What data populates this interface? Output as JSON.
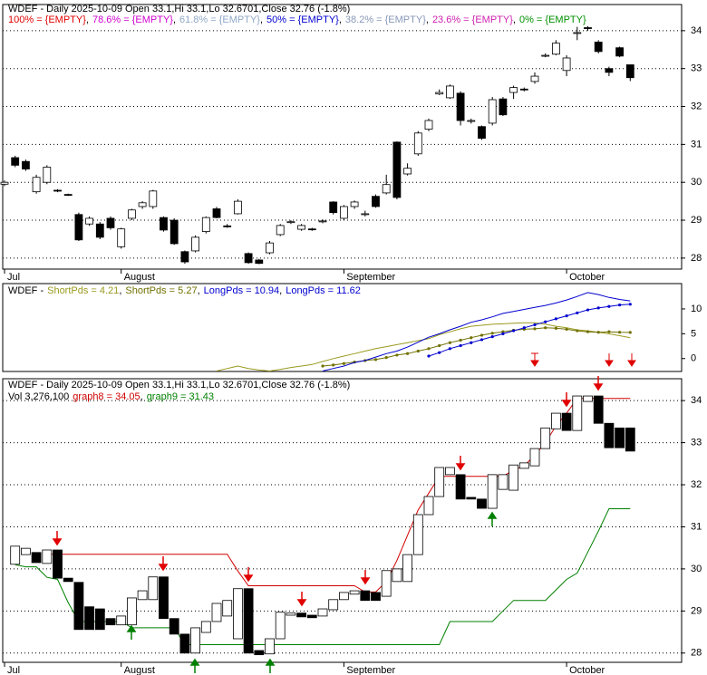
{
  "legend_separator": ",",
  "chart_data": [
    {
      "type": "candlestick",
      "title": "WDEF - Daily 2025-10-09 Open 33.1,Hi 33.1,Lo 32.6701,Close 32.76 (-1.8%)",
      "levels": [
        {
          "name": "100% = {EMPTY}",
          "color": "#e00000"
        },
        {
          "name": "78.6% = {EMPTY}",
          "color": "#d000d0"
        },
        {
          "name": "61.8% = {EMPTY}",
          "color": "#90a8c8"
        },
        {
          "name": "50% = {EMPTY}",
          "color": "#0000d0"
        },
        {
          "name": "38.2% = {EMPTY}",
          "color": "#8898b8"
        },
        {
          "name": "23.6% = {EMPTY}",
          "color": "#d020b0"
        },
        {
          "name": "0% = {EMPTY}",
          "color": "#009000"
        }
      ],
      "categories": [
        "Jul",
        null,
        null,
        null,
        null,
        null,
        null,
        null,
        null,
        null,
        null,
        "August",
        null,
        null,
        null,
        null,
        null,
        null,
        null,
        null,
        null,
        null,
        null,
        null,
        null,
        null,
        null,
        null,
        null,
        null,
        null,
        null,
        "September",
        null,
        null,
        null,
        null,
        null,
        null,
        null,
        null,
        null,
        null,
        null,
        null,
        null,
        null,
        null,
        null,
        null,
        null,
        null,
        null,
        "October",
        null,
        null,
        null,
        null,
        null,
        null
      ],
      "open": [
        29.95,
        30.65,
        30.55,
        29.75,
        30.0,
        29.79,
        29.68,
        29.15,
        28.9,
        28.9,
        29.05,
        28.3,
        29.05,
        29.36,
        29.36,
        29.07,
        29.0,
        28.17,
        28.19,
        28.7,
        29.3,
        28.85,
        29.17,
        28.12,
        27.95,
        28.14,
        28.62,
        28.94,
        28.76,
        28.77,
        28.96,
        29.48,
        29.05,
        29.36,
        29.17,
        29.63,
        29.72,
        31.06,
        30.22,
        30.75,
        31.4,
        32.33,
        32.23,
        32.35,
        31.61,
        31.47,
        31.56,
        32.2,
        32.37,
        32.46,
        32.66,
        33.35,
        33.38,
        32.95,
        33.93,
        34.08,
        33.7,
        33.0,
        33.55,
        33.1
      ],
      "high": [
        30.05,
        30.7,
        30.6,
        30.2,
        30.45,
        29.82,
        29.7,
        29.2,
        29.1,
        28.95,
        29.1,
        28.8,
        29.3,
        29.5,
        29.8,
        29.1,
        29.05,
        28.2,
        28.6,
        29.1,
        29.35,
        28.9,
        29.55,
        28.15,
        27.98,
        28.45,
        28.9,
        29.0,
        28.9,
        28.8,
        29.02,
        29.5,
        29.4,
        29.52,
        29.25,
        29.68,
        30.2,
        31.08,
        30.5,
        31.35,
        31.68,
        32.45,
        32.58,
        32.4,
        31.68,
        31.5,
        32.25,
        32.25,
        32.55,
        32.5,
        32.9,
        33.4,
        33.75,
        33.35,
        34.1,
        34.12,
        33.75,
        33.05,
        33.58,
        33.1
      ],
      "low": [
        29.9,
        30.4,
        30.3,
        29.7,
        29.95,
        29.74,
        29.64,
        28.45,
        28.85,
        28.5,
        28.75,
        28.25,
        29.0,
        29.3,
        29.3,
        28.7,
        28.35,
        27.85,
        28.15,
        28.65,
        29.05,
        28.8,
        29.15,
        27.85,
        27.84,
        28.1,
        28.58,
        28.9,
        28.72,
        28.72,
        28.92,
        29.15,
        29.0,
        29.3,
        29.1,
        29.33,
        29.68,
        29.55,
        30.18,
        30.7,
        31.35,
        32.3,
        32.2,
        31.5,
        31.55,
        31.12,
        31.5,
        31.75,
        32.2,
        32.4,
        32.6,
        33.3,
        33.35,
        32.8,
        33.75,
        34.0,
        33.4,
        32.8,
        33.3,
        32.67
      ],
      "close": [
        30.0,
        30.45,
        30.35,
        30.13,
        30.4,
        29.77,
        29.67,
        28.48,
        29.05,
        28.55,
        28.8,
        28.77,
        29.27,
        29.46,
        29.77,
        28.74,
        28.38,
        27.9,
        28.55,
        29.07,
        29.07,
        28.84,
        29.5,
        27.88,
        27.86,
        28.4,
        28.86,
        28.96,
        28.86,
        28.76,
        28.98,
        29.2,
        29.36,
        29.48,
        29.17,
        29.36,
        29.94,
        29.6,
        30.37,
        31.3,
        31.63,
        32.37,
        32.54,
        31.63,
        31.63,
        31.16,
        32.18,
        31.78,
        32.5,
        32.45,
        32.8,
        33.35,
        33.67,
        33.28,
        33.95,
        34.07,
        33.45,
        32.9,
        33.33,
        32.76
      ],
      "up_color": "#ffffff",
      "down_color": "#000000",
      "ylim": [
        27.71,
        34.69
      ],
      "yticks": [
        28,
        29,
        30,
        31,
        32,
        33,
        34
      ],
      "grid": true
    },
    {
      "type": "line",
      "title": "WDEF -",
      "series": [
        {
          "name": "ShortPds = 4.21",
          "color": "#9a9a20",
          "marker": false,
          "values": [
            null,
            null,
            null,
            null,
            null,
            null,
            null,
            null,
            null,
            null,
            null,
            null,
            null,
            null,
            null,
            null,
            null,
            null,
            null,
            null,
            -2.5,
            -2.0,
            -1.5,
            -2.0,
            -2.3,
            -2.5,
            -2.2,
            -1.8,
            -1.5,
            -1.2,
            -0.6,
            0,
            0.5,
            1.0,
            1.5,
            2.0,
            2.4,
            2.8,
            3.2,
            3.6,
            4.0,
            4.8,
            5.4,
            6.0,
            6.5,
            6.7,
            6.9,
            7.0,
            7.1,
            7.2,
            7.2,
            6.9,
            6.5,
            6.2,
            5.8,
            5.6,
            5.3,
            5.0,
            4.6,
            4.21
          ]
        },
        {
          "name": "ShortPds = 5.27",
          "color": "#707000",
          "marker": true,
          "values": [
            null,
            null,
            null,
            null,
            null,
            null,
            null,
            null,
            null,
            null,
            null,
            null,
            null,
            null,
            null,
            null,
            null,
            null,
            null,
            null,
            null,
            null,
            null,
            null,
            null,
            null,
            null,
            null,
            null,
            null,
            -1.5,
            -1.3,
            -1.0,
            -0.7,
            -0.4,
            -0.2,
            0.2,
            0.7,
            1.0,
            1.5,
            2.0,
            2.6,
            3.2,
            3.7,
            4.2,
            4.7,
            5.1,
            5.4,
            5.7,
            5.9,
            6.0,
            6.2,
            6.1,
            5.9,
            5.6,
            5.4,
            5.3,
            5.4,
            5.3,
            5.27
          ]
        },
        {
          "name": "LongPds = 10.94",
          "color": "#0000d0",
          "marker": true,
          "values": [
            null,
            null,
            null,
            null,
            null,
            null,
            null,
            null,
            null,
            null,
            null,
            null,
            null,
            null,
            null,
            null,
            null,
            null,
            null,
            null,
            null,
            null,
            null,
            null,
            null,
            null,
            null,
            null,
            null,
            null,
            null,
            null,
            null,
            null,
            null,
            null,
            null,
            null,
            null,
            null,
            0.5,
            1.2,
            2.0,
            2.6,
            3.2,
            3.8,
            4.4,
            5.0,
            5.6,
            6.2,
            6.8,
            7.4,
            8.0,
            8.6,
            9.2,
            9.8,
            10.2,
            10.5,
            10.8,
            10.94
          ]
        },
        {
          "name": "LongPds = 11.62",
          "color": "#0000d0",
          "marker": false,
          "values": [
            null,
            null,
            null,
            null,
            null,
            null,
            null,
            null,
            null,
            null,
            null,
            null,
            null,
            null,
            null,
            null,
            null,
            null,
            null,
            null,
            null,
            null,
            null,
            null,
            null,
            null,
            null,
            null,
            null,
            null,
            -2.5,
            -2.0,
            -1.5,
            -0.8,
            -0.4,
            0.3,
            1.0,
            1.5,
            2.3,
            3.3,
            4.3,
            5.0,
            5.8,
            6.5,
            7.3,
            7.8,
            8.4,
            9.1,
            9.5,
            9.9,
            10.3,
            10.7,
            11.2,
            11.8,
            12.5,
            13.3,
            12.9,
            12.3,
            11.9,
            11.62
          ]
        }
      ],
      "ylim": [
        -2.6,
        15.1
      ],
      "yticks": [
        0,
        5,
        10
      ],
      "grid": false
    },
    {
      "type": "heikin-ashi",
      "title": "WDEF - Daily 2025-10-09 Open 33.1,Hi 33.1,Lo 32.6701,Close 32.76 (-1.8%)",
      "volume_label": "Vol 3,276,100",
      "categories": [
        "Jul",
        null,
        null,
        null,
        null,
        null,
        null,
        null,
        null,
        null,
        null,
        "August",
        null,
        null,
        null,
        null,
        null,
        null,
        null,
        null,
        null,
        null,
        null,
        null,
        null,
        null,
        null,
        null,
        null,
        null,
        null,
        null,
        "September",
        null,
        null,
        null,
        null,
        null,
        null,
        null,
        null,
        null,
        null,
        null,
        null,
        null,
        null,
        null,
        null,
        null,
        null,
        null,
        null,
        "October",
        null,
        null,
        null,
        null,
        null,
        null
      ],
      "open": [
        null,
        30.11,
        30.34,
        30.39,
        30.13,
        30.45,
        29.78,
        29.68,
        29.1,
        29.05,
        28.82,
        28.67,
        28.67,
        29.27,
        29.27,
        29.81,
        28.82,
        28.45,
        28.0,
        28.49,
        28.75,
        28.88,
        28.34,
        29.53,
        28.06,
        27.98,
        28.34,
        28.9,
        28.95,
        28.9,
        28.88,
        29.03,
        29.27,
        29.4,
        29.48,
        29.44,
        29.35,
        29.7,
        29.7,
        30.34,
        31.29,
        31.72,
        32.24,
        32.24,
        31.7,
        31.66,
        31.44,
        31.89,
        31.87,
        32.39,
        32.45,
        32.86,
        33.33,
        33.7,
        33.29,
        33.98,
        34.11,
        33.46,
        33.35,
        33.35
      ],
      "close": [
        null,
        30.54,
        30.49,
        30.15,
        30.45,
        29.78,
        29.7,
        28.56,
        28.56,
        28.56,
        28.67,
        28.88,
        29.31,
        29.48,
        29.81,
        28.82,
        28.45,
        28.0,
        28.6,
        28.75,
        29.18,
        29.25,
        29.53,
        28.0,
        27.96,
        28.34,
        28.97,
        28.95,
        28.86,
        28.84,
        29.05,
        29.27,
        29.44,
        29.48,
        29.25,
        29.25,
        29.96,
        30.0,
        30.34,
        31.29,
        31.72,
        32.41,
        32.41,
        31.66,
        31.66,
        31.44,
        32.24,
        32.24,
        32.47,
        32.52,
        32.86,
        33.35,
        33.7,
        33.29,
        34.11,
        34.11,
        33.46,
        32.88,
        32.88,
        32.8
      ],
      "up_color": "#ffffff",
      "down_color": "#000000",
      "series": [
        {
          "name": "graph8 = 34.05",
          "color": "#d00000",
          "values": [
            null,
            null,
            null,
            null,
            30.35,
            30.35,
            30.35,
            30.35,
            30.35,
            30.35,
            30.35,
            30.35,
            30.35,
            30.35,
            30.35,
            30.35,
            30.35,
            30.35,
            30.35,
            30.35,
            30.35,
            30.35,
            29.95,
            29.6,
            29.6,
            29.6,
            29.6,
            29.6,
            29.6,
            29.6,
            29.6,
            29.6,
            29.6,
            29.6,
            29.45,
            29.45,
            29.7,
            30.2,
            30.8,
            31.4,
            31.8,
            32.2,
            32.2,
            32.2,
            32.2,
            32.2,
            32.2,
            32.2,
            32.35,
            32.45,
            32.7,
            33.0,
            33.4,
            33.7,
            34.05,
            34.05,
            34.05,
            34.05,
            34.05,
            34.05
          ]
        },
        {
          "name": "graph9 = 31.43",
          "color": "#008000",
          "values": [
            null,
            30.1,
            30.05,
            30.05,
            29.8,
            29.75,
            29.2,
            28.75,
            28.75,
            28.75,
            28.75,
            28.75,
            28.6,
            28.6,
            28.6,
            28.6,
            28.6,
            28.2,
            28.2,
            28.2,
            28.2,
            28.2,
            28.2,
            28.2,
            28.2,
            28.2,
            28.2,
            28.2,
            28.2,
            28.2,
            28.2,
            28.2,
            28.2,
            28.2,
            28.2,
            28.2,
            28.2,
            28.2,
            28.2,
            28.2,
            28.2,
            28.2,
            28.75,
            28.75,
            28.75,
            28.75,
            28.75,
            29.0,
            29.25,
            29.25,
            29.25,
            29.25,
            29.5,
            29.75,
            29.9,
            30.4,
            30.9,
            31.43,
            31.43,
            31.43
          ]
        }
      ],
      "ylim": [
        27.78,
        34.52
      ],
      "yticks": [
        28,
        29,
        30,
        31,
        32,
        33,
        34
      ],
      "grid": true
    }
  ]
}
